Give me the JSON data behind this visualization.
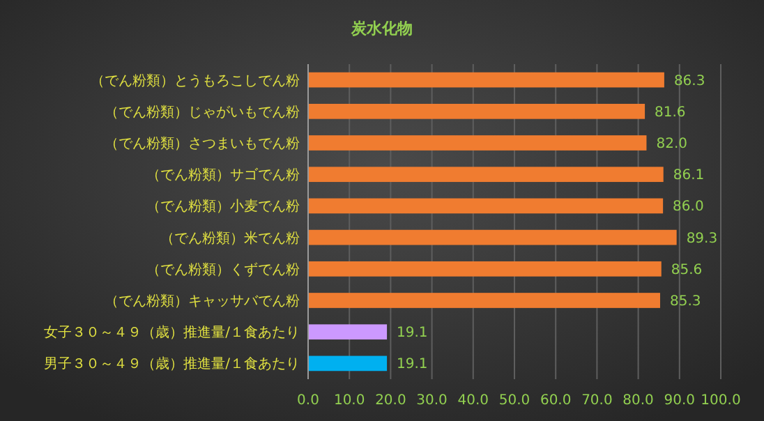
{
  "chart_data": {
    "type": "bar",
    "orientation": "horizontal",
    "title": "炭水化物",
    "categories": [
      "（でん粉類）とうもろこしでん粉",
      "（でん粉類）じゃがいもでん粉",
      "（でん粉類）さつまいもでん粉",
      "（でん粉類）サゴでん粉",
      "（でん粉類）小麦でん粉",
      "（でん粉類）米でん粉",
      "（でん粉類）くずでん粉",
      "（でん粉類）キャッサバでん粉",
      "女子３０～４９（歳）推進量/１食あたり",
      "男子３０～４９（歳）推進量/１食あたり"
    ],
    "values": [
      86.3,
      81.6,
      82.0,
      86.1,
      86.0,
      89.3,
      85.6,
      85.3,
      19.1,
      19.1
    ],
    "value_labels": [
      "86.3",
      "81.6",
      "82.0",
      "86.1",
      "86.0",
      "89.3",
      "85.6",
      "85.3",
      "19.1",
      "19.1"
    ],
    "colors": [
      "#f07c30",
      "#f07c30",
      "#f07c30",
      "#f07c30",
      "#f07c30",
      "#f07c30",
      "#f07c30",
      "#f07c30",
      "#cc99ff",
      "#00b0f0"
    ],
    "xlim": [
      0,
      100
    ],
    "xticks": [
      {
        "value": 0,
        "label": "0.0"
      },
      {
        "value": 10,
        "label": "10.0"
      },
      {
        "value": 20,
        "label": "20.0"
      },
      {
        "value": 30,
        "label": "30.0"
      },
      {
        "value": 40,
        "label": "40.0"
      },
      {
        "value": 50,
        "label": "50.0"
      },
      {
        "value": 60,
        "label": "60.0"
      },
      {
        "value": 70,
        "label": "70.0"
      },
      {
        "value": 80,
        "label": "80.0"
      },
      {
        "value": 90,
        "label": "90.0"
      },
      {
        "value": 100,
        "label": "100.0"
      }
    ],
    "grid": "x"
  }
}
